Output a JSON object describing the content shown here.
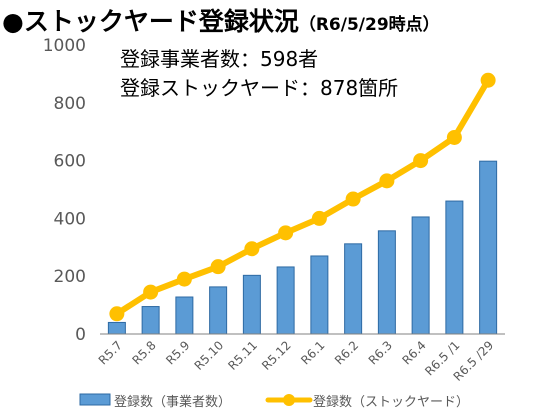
{
  "title": "●ストックヤード登録状況",
  "subtitle": "（R6/5/29時点）",
  "annotations": [
    "登録事業者数：598者",
    "登録ストックヤード：878箇所"
  ],
  "colors": {
    "bar": "#5b9bd5",
    "bar_stroke": "#2e6aa3",
    "line": "#ffc000",
    "axis": "#808080"
  },
  "chart_data": {
    "type": "bar",
    "title": "●ストックヤード登録状況",
    "xlabel": "",
    "ylabel": "",
    "ylim": [
      0,
      1000
    ],
    "yticks": [
      0,
      200,
      400,
      600,
      800,
      1000
    ],
    "grid": false,
    "legend": "bottom",
    "categories": [
      "R5.7",
      "R5.8",
      "R5.9",
      "R5.10",
      "R5.11",
      "R5.12",
      "R6.1",
      "R6.2",
      "R6.3",
      "R6.4",
      "R6.5 /1",
      "R6.5 /29"
    ],
    "series": [
      {
        "name": "登録数（事業者数）",
        "type": "bar",
        "values": [
          40,
          95,
          128,
          163,
          203,
          232,
          270,
          312,
          357,
          405,
          460,
          598
        ]
      },
      {
        "name": "登録数（ストックヤード）",
        "type": "line",
        "values": [
          70,
          145,
          190,
          233,
          295,
          350,
          400,
          467,
          530,
          600,
          680,
          878
        ]
      }
    ]
  }
}
